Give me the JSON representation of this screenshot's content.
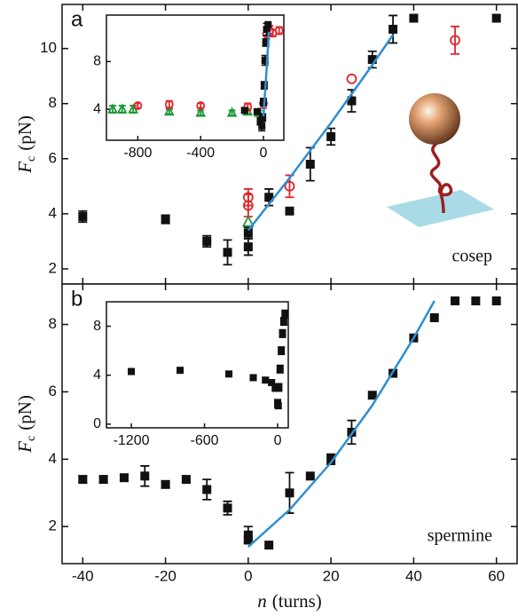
{
  "chart_data": [
    {
      "type": "scatter",
      "panel_label": "a",
      "annotation": "cosep",
      "ylabel": {
        "var": "F",
        "sub": "c",
        "unit": "(pN)"
      },
      "xlim": [
        -45,
        65
      ],
      "xticks": [
        -40,
        -20,
        0,
        20,
        40,
        60
      ],
      "show_xtick_labels": false,
      "ylim": [
        1.45,
        11.6
      ],
      "yticks": [
        2,
        4,
        6,
        8,
        10
      ],
      "series": [
        {
          "marker": "square",
          "color": "#111111",
          "x": [
            -40,
            -20,
            -10,
            -5,
            0,
            0,
            5,
            10,
            15,
            20,
            25,
            30,
            35,
            40,
            60
          ],
          "values": [
            3.9,
            3.8,
            3.0,
            2.6,
            2.8,
            3.3,
            4.6,
            4.1,
            5.8,
            6.8,
            8.1,
            9.6,
            10.7,
            11.1,
            11.1
          ],
          "errors": [
            0.2,
            0.15,
            0.2,
            0.45,
            0.3,
            0.2,
            0.3,
            0.1,
            0.6,
            0.3,
            0.4,
            0.3,
            0.5,
            null,
            null
          ]
        },
        {
          "marker": "circle",
          "color": "#e0262b",
          "x": [
            0,
            0,
            10,
            25,
            50
          ],
          "values": [
            4.3,
            4.6,
            5.0,
            8.9,
            10.3
          ],
          "errors": [
            0.4,
            0.3,
            0.4,
            null,
            0.5
          ]
        },
        {
          "marker": "triangle",
          "color": "#1f9a3a",
          "x": [
            0
          ],
          "values": [
            3.7
          ],
          "errors": [
            null
          ]
        },
        {
          "marker": "line",
          "color": "#2f8fd0",
          "x": [
            0,
            10,
            20,
            30,
            35
          ],
          "values": [
            3.4,
            5.3,
            7.3,
            9.4,
            10.5
          ]
        }
      ]
    },
    {
      "type": "scatter",
      "xlim": [
        -1000,
        130
      ],
      "xticks": [
        -800,
        -400,
        0
      ],
      "show_xtick_labels": true,
      "ylim": [
        1.4,
        11.9
      ],
      "yticks": [
        4,
        8
      ],
      "series": [
        {
          "marker": "triangle",
          "color": "#1f9a3a",
          "x": [
            -960,
            -900,
            -830,
            -600,
            -400,
            -200,
            -100,
            -30
          ],
          "values": [
            4.0,
            4.0,
            4.0,
            3.8,
            3.7,
            3.7,
            3.8,
            3.7
          ],
          "errors": [
            0.3,
            0.3,
            0.3,
            0.2,
            0.2,
            0.2,
            0.2,
            0.2
          ]
        },
        {
          "marker": "circle",
          "color": "#e0262b",
          "x": [
            -800,
            -600,
            -400,
            -100,
            0,
            20,
            40,
            60,
            100
          ],
          "values": [
            4.3,
            4.4,
            4.3,
            4.2,
            4.5,
            10.3,
            10.6,
            10.4,
            10.6
          ],
          "errors": [
            0.2,
            0.3,
            0.2,
            0.3,
            0.4,
            0.4,
            0.4,
            0.3,
            0.3
          ]
        },
        {
          "marker": "square",
          "color": "#111111",
          "x": [
            -120,
            -40,
            -20,
            -10,
            -5,
            0,
            5,
            10,
            15,
            20,
            30
          ],
          "values": [
            3.9,
            3.8,
            3.0,
            2.6,
            3.3,
            4.6,
            6.0,
            8.1,
            9.6,
            10.7,
            11.1
          ],
          "errors": [
            0.2,
            0.2,
            0.3,
            0.4,
            0.3,
            0.3,
            0.3,
            0.4,
            0.3,
            0.5,
            null
          ]
        },
        {
          "marker": "line",
          "color": "#2f8fd0",
          "x": [
            0,
            10,
            20,
            35
          ],
          "values": [
            3.4,
            5.3,
            7.3,
            10.5
          ]
        }
      ]
    },
    {
      "type": "scatter",
      "panel_label": "b",
      "annotation": "spermine",
      "ylabel": {
        "var": "F",
        "sub": "c",
        "unit": "(pN)"
      },
      "xlabel": {
        "var": "n",
        "unit": "(turns)"
      },
      "xlim": [
        -45,
        65
      ],
      "xticks": [
        -40,
        -20,
        0,
        20,
        40,
        60
      ],
      "show_xtick_labels": true,
      "ylim": [
        0.9,
        9.2
      ],
      "yticks": [
        2,
        4,
        6,
        8
      ],
      "series": [
        {
          "marker": "square",
          "color": "#111111",
          "x": [
            -40,
            -35,
            -30,
            -25,
            -20,
            -15,
            -10,
            -5,
            0,
            0,
            5,
            10,
            15,
            20,
            25,
            30,
            35,
            40,
            45,
            50,
            55,
            60
          ],
          "values": [
            3.4,
            3.4,
            3.45,
            3.5,
            3.25,
            3.4,
            3.1,
            2.55,
            1.75,
            1.6,
            1.45,
            3.0,
            3.5,
            4.0,
            4.8,
            5.9,
            6.55,
            7.6,
            8.2,
            8.7,
            8.7,
            8.7
          ],
          "errors": [
            0.1,
            0.1,
            0.1,
            0.3,
            0.1,
            0.1,
            0.3,
            0.2,
            0.25,
            0.1,
            null,
            0.6,
            null,
            0.15,
            0.35,
            null,
            null,
            null,
            null,
            null,
            null,
            null
          ]
        },
        {
          "marker": "line",
          "color": "#2f8fd0",
          "x": [
            0,
            10,
            20,
            30,
            40,
            45
          ],
          "values": [
            1.4,
            2.5,
            3.9,
            5.6,
            7.6,
            8.7
          ]
        }
      ]
    },
    {
      "type": "scatter",
      "xlim": [
        -1404,
        87
      ],
      "xticks": [
        -1200,
        -600,
        0
      ],
      "show_xtick_labels": true,
      "ylim": [
        -0.3,
        10
      ],
      "yticks": [
        0,
        4,
        8
      ],
      "series": [
        {
          "marker": "square",
          "color": "#111111",
          "x": [
            -1200,
            -800,
            -400,
            -200,
            -100,
            -50,
            -20,
            0,
            5,
            10,
            20,
            30,
            40,
            50,
            60
          ],
          "values": [
            4.3,
            4.4,
            4.1,
            3.8,
            3.6,
            3.4,
            3.0,
            1.7,
            1.5,
            3.0,
            4.5,
            6.0,
            7.4,
            8.4,
            9.0
          ],
          "errors": [
            0.2,
            0.2,
            0.2,
            0.2,
            0.2,
            0.2,
            0.3,
            0.3,
            0.2,
            0.3,
            0.3,
            0.3,
            0.3,
            0.3,
            0.3
          ]
        }
      ]
    }
  ]
}
